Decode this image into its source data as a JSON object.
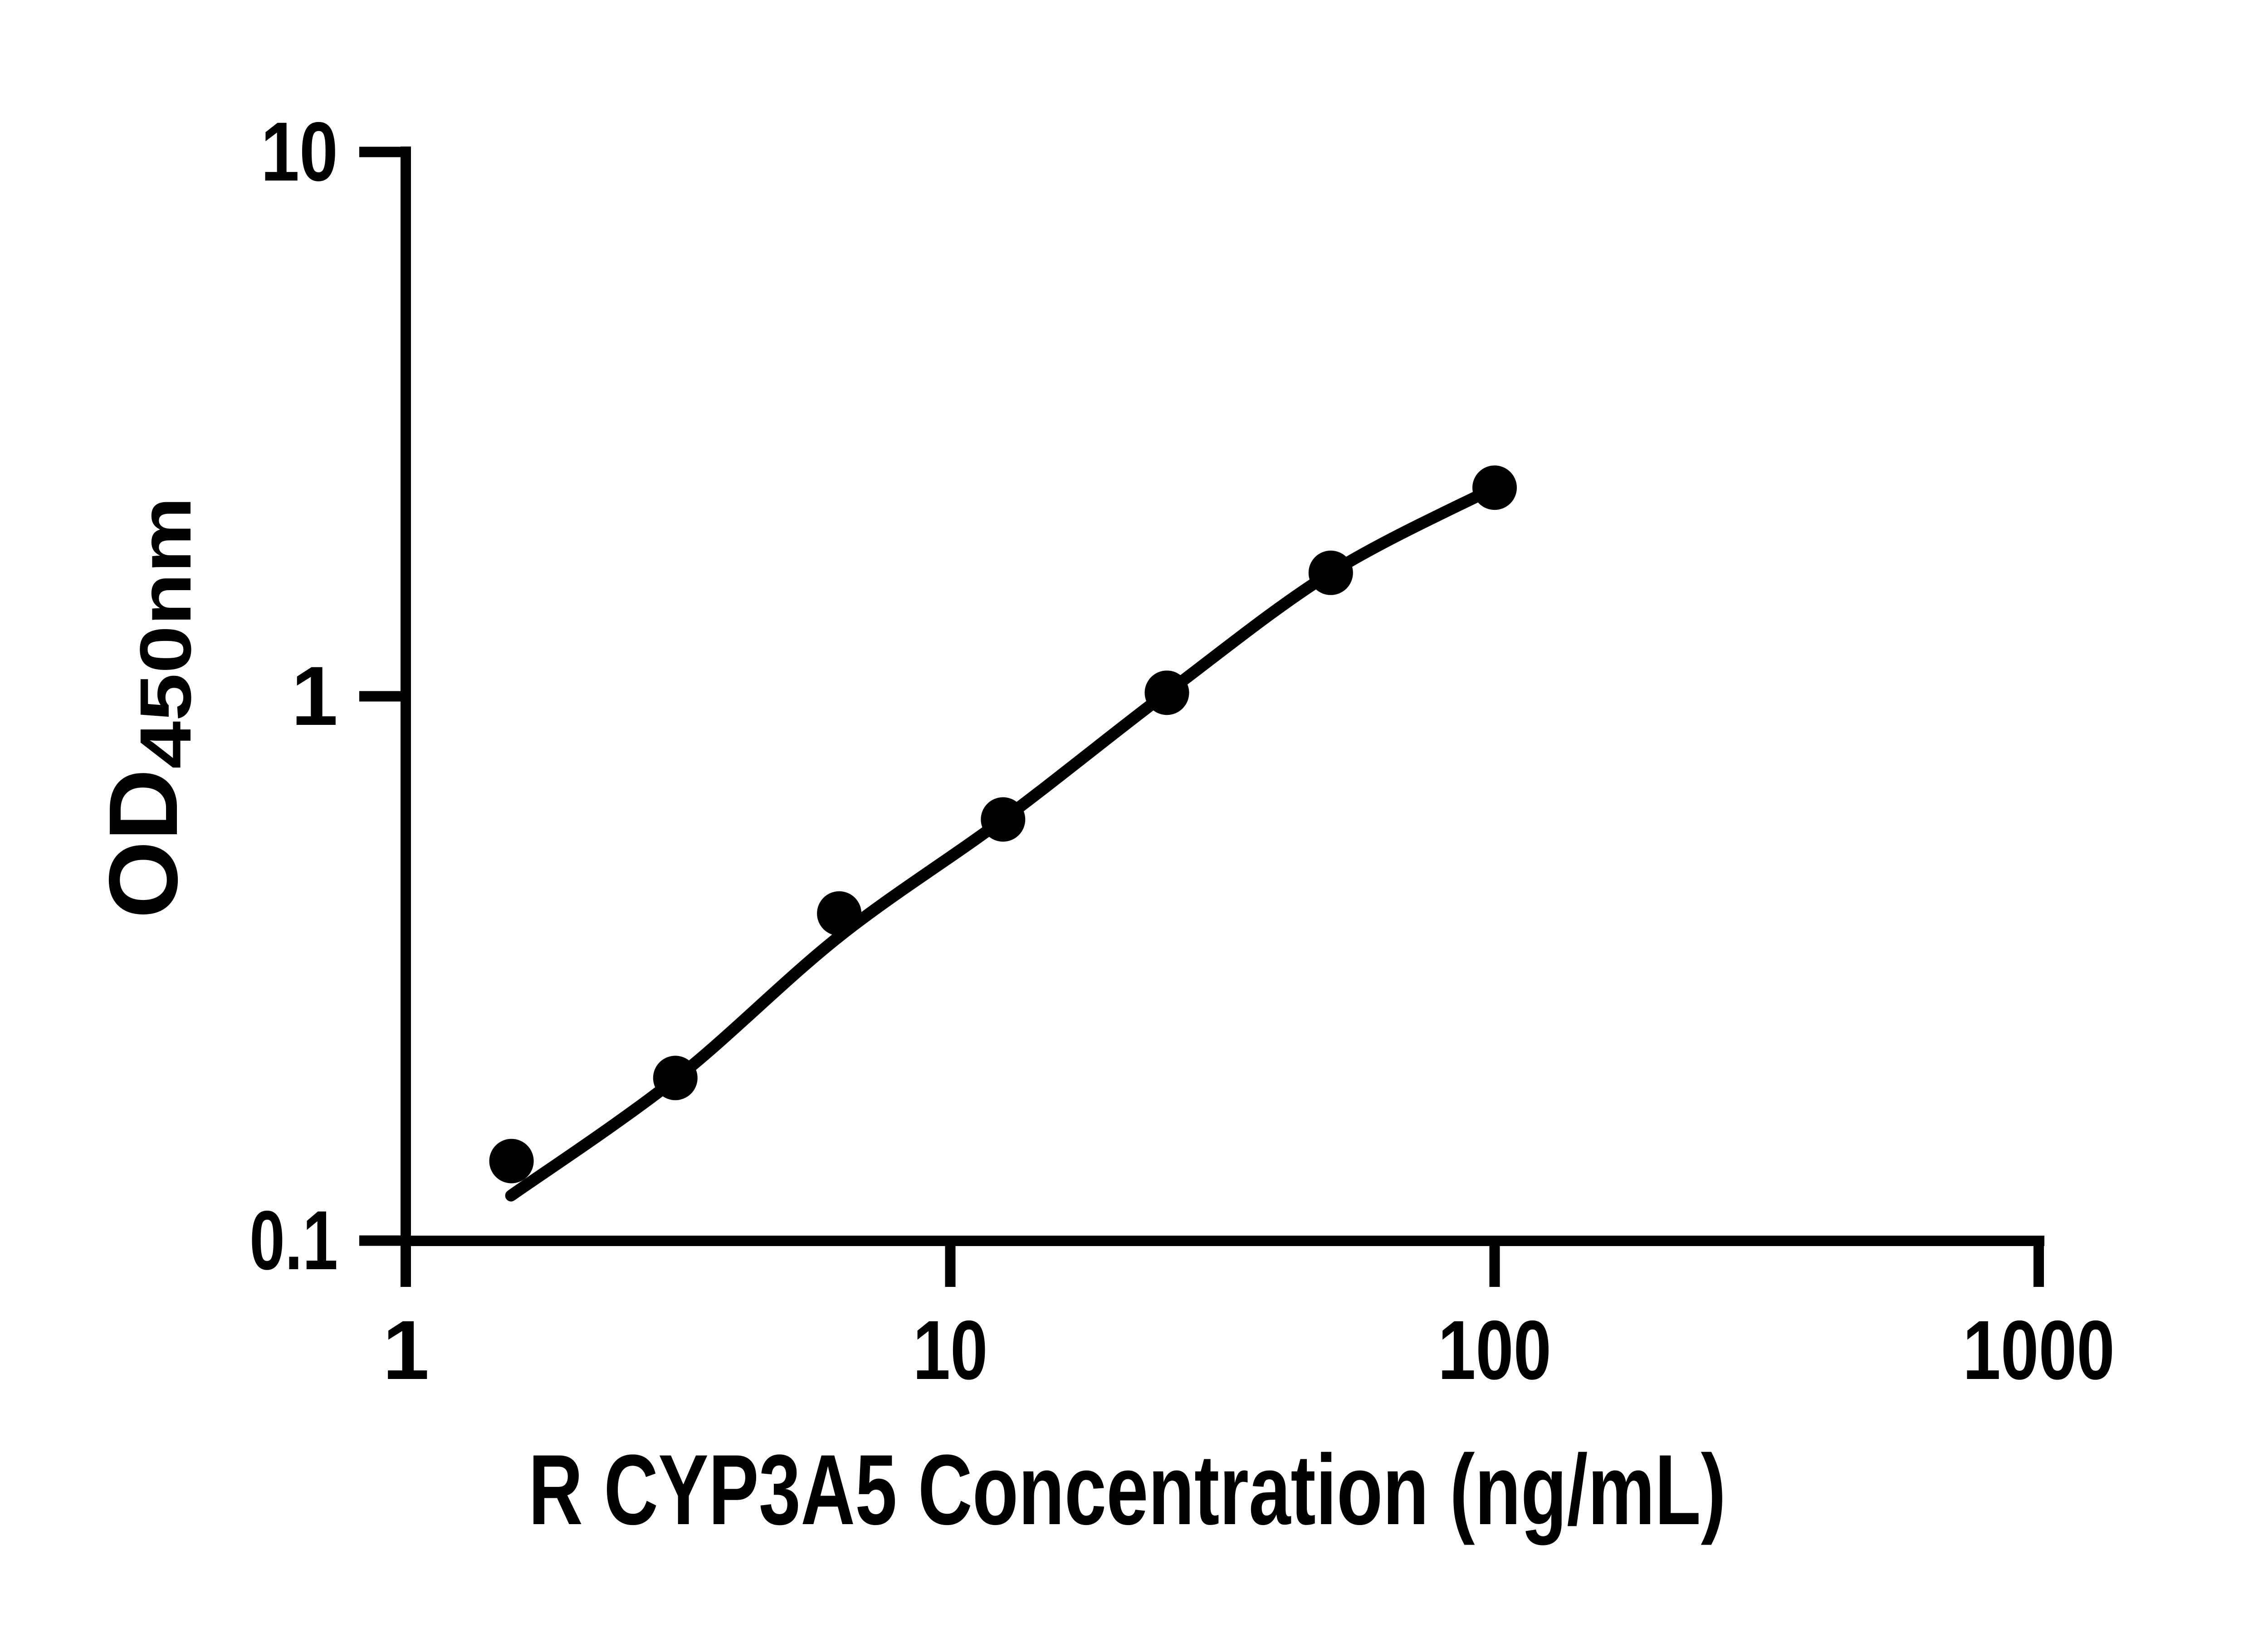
{
  "chart_data": {
    "type": "scatter",
    "title": "",
    "xlabel": "R CYP3A5 Concentration (ng/mL)",
    "ylabel_main": "OD",
    "ylabel_sub": "450nm",
    "x_scale": "log10",
    "y_scale": "log10",
    "xlim": [
      1,
      1000
    ],
    "ylim": [
      0.1,
      10
    ],
    "x_ticks": [
      "1",
      "10",
      "100",
      "1000"
    ],
    "y_ticks": [
      "10",
      "1",
      "0.1"
    ],
    "grid": false,
    "legend": false,
    "series": [
      {
        "name": "standard-points",
        "marker": "filled-circle",
        "color": "#000000",
        "x": [
          1.5625,
          3.125,
          6.25,
          12.5,
          25,
          50,
          100
        ],
        "y": [
          0.14,
          0.199,
          0.399,
          0.594,
          1.015,
          1.686,
          2.417
        ]
      },
      {
        "name": "fitted-curve",
        "marker": "none",
        "color": "#000000",
        "x": [
          1.56,
          3.125,
          6.25,
          12.5,
          25,
          50,
          100
        ],
        "y": [
          0.121,
          0.198,
          0.362,
          0.594,
          1.015,
          1.686,
          2.417
        ]
      }
    ]
  },
  "colors": {
    "foreground": "#000000",
    "background": "#ffffff"
  }
}
